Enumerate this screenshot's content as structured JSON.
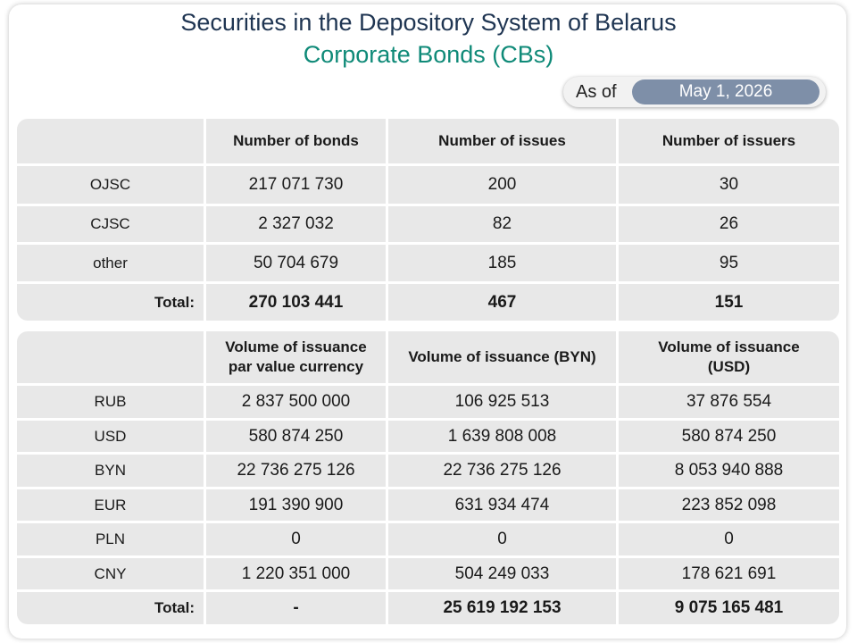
{
  "title": "Securities in the Depository System of Belarus",
  "subtitle": "Corporate Bonds (CBs)",
  "as_of": {
    "label": "As of",
    "date": "May 1, 2026"
  },
  "table1": {
    "headers": [
      "",
      "Number of bonds",
      "Number of issues",
      "Number of issuers"
    ],
    "rows": [
      [
        "OJSC",
        "217 071 730",
        "200",
        "30"
      ],
      [
        "CJSC",
        "2 327 032",
        "82",
        "26"
      ],
      [
        "other",
        "50 704 679",
        "185",
        "95"
      ]
    ],
    "total": [
      "Total:",
      "270 103 441",
      "467",
      "151"
    ]
  },
  "table2": {
    "headers": [
      "",
      "Volume of issuance\npar value currency",
      "Volume of issuance (BYN)",
      "Volume of issuance\n(USD)"
    ],
    "rows": [
      [
        "RUB",
        "2 837 500 000",
        "106 925 513",
        "37 876 554"
      ],
      [
        "USD",
        "580 874 250",
        "1 639 808 008",
        "580 874 250"
      ],
      [
        "BYN",
        "22 736 275 126",
        "22 736 275 126",
        "8 053 940 888"
      ],
      [
        "EUR",
        "191 390 900",
        "631 934 474",
        "223 852 098"
      ],
      [
        "PLN",
        "0",
        "0",
        "0"
      ],
      [
        "CNY",
        "1 220 351 000",
        "504 249 033",
        "178 621 691"
      ]
    ],
    "total": [
      "Total:",
      "-",
      "25 619 192 153",
      "9 075 165 481"
    ]
  }
}
